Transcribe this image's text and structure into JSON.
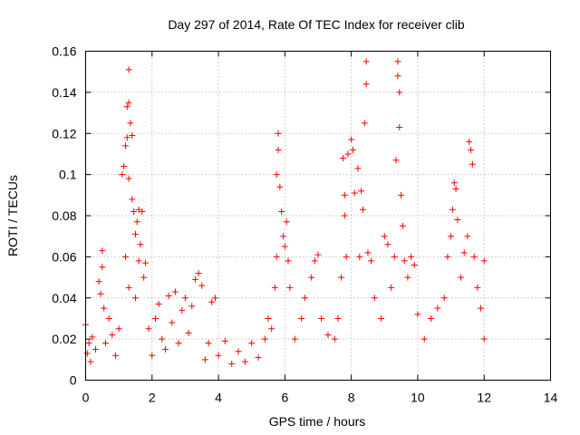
{
  "chart_data": {
    "type": "scatter",
    "title": "Day 297 of 2014, Rate Of TEC Index for receiver clib",
    "xlabel": "GPS time / hours",
    "ylabel": "ROTI / TECUs",
    "xlim": [
      0,
      14
    ],
    "ylim": [
      0,
      0.16
    ],
    "xticks": [
      0,
      2,
      4,
      6,
      8,
      10,
      12,
      14
    ],
    "xtick_labels": [
      "0",
      "2",
      "4",
      "6",
      "8",
      "10",
      "12",
      "14"
    ],
    "yticks": [
      0,
      0.02,
      0.04,
      0.06,
      0.08,
      0.1,
      0.12,
      0.14,
      0.16
    ],
    "ytick_labels": [
      "0",
      "0.02",
      "0.04",
      "0.06",
      "0.08",
      "0.1",
      "0.12",
      "0.14",
      "0.16"
    ],
    "grid": true,
    "marker": "+",
    "color": "#ff0000",
    "series": [
      {
        "name": "ROTI",
        "points": [
          [
            0.0,
            0.027
          ],
          [
            0.05,
            0.013
          ],
          [
            0.1,
            0.018
          ],
          [
            0.15,
            0.009
          ],
          [
            0.2,
            0.021
          ],
          [
            0.3,
            0.015
          ],
          [
            0.4,
            0.048
          ],
          [
            0.45,
            0.042
          ],
          [
            0.5,
            0.055
          ],
          [
            0.5,
            0.063
          ],
          [
            0.55,
            0.035
          ],
          [
            0.6,
            0.018
          ],
          [
            0.7,
            0.03
          ],
          [
            0.8,
            0.022
          ],
          [
            0.9,
            0.012
          ],
          [
            1.0,
            0.025
          ],
          [
            1.1,
            0.1
          ],
          [
            1.15,
            0.104
          ],
          [
            1.2,
            0.114
          ],
          [
            1.25,
            0.118
          ],
          [
            1.25,
            0.133
          ],
          [
            1.3,
            0.135
          ],
          [
            1.3,
            0.151
          ],
          [
            1.3,
            0.098
          ],
          [
            1.35,
            0.125
          ],
          [
            1.4,
            0.119
          ],
          [
            1.4,
            0.088
          ],
          [
            1.45,
            0.082
          ],
          [
            1.5,
            0.071
          ],
          [
            1.55,
            0.077
          ],
          [
            1.6,
            0.083
          ],
          [
            1.65,
            0.066
          ],
          [
            1.7,
            0.082
          ],
          [
            1.6,
            0.058
          ],
          [
            1.75,
            0.05
          ],
          [
            1.8,
            0.057
          ],
          [
            1.2,
            0.06
          ],
          [
            1.3,
            0.045
          ],
          [
            1.5,
            0.04
          ],
          [
            1.9,
            0.025
          ],
          [
            2.0,
            0.012
          ],
          [
            2.1,
            0.03
          ],
          [
            2.2,
            0.037
          ],
          [
            2.3,
            0.02
          ],
          [
            2.4,
            0.015
          ],
          [
            2.5,
            0.041
          ],
          [
            2.6,
            0.028
          ],
          [
            2.7,
            0.043
          ],
          [
            2.8,
            0.018
          ],
          [
            2.9,
            0.034
          ],
          [
            3.0,
            0.04
          ],
          [
            3.1,
            0.023
          ],
          [
            3.2,
            0.036
          ],
          [
            3.3,
            0.049
          ],
          [
            3.4,
            0.052
          ],
          [
            3.5,
            0.046
          ],
          [
            3.6,
            0.01
          ],
          [
            3.7,
            0.018
          ],
          [
            3.8,
            0.038
          ],
          [
            3.9,
            0.04
          ],
          [
            4.0,
            0.012
          ],
          [
            4.2,
            0.019
          ],
          [
            4.4,
            0.008
          ],
          [
            4.6,
            0.014
          ],
          [
            4.8,
            0.009
          ],
          [
            5.0,
            0.018
          ],
          [
            5.2,
            0.011
          ],
          [
            5.4,
            0.02
          ],
          [
            5.6,
            0.025
          ],
          [
            5.5,
            0.03
          ],
          [
            5.7,
            0.045
          ],
          [
            5.75,
            0.06
          ],
          [
            5.75,
            0.1
          ],
          [
            5.8,
            0.112
          ],
          [
            5.8,
            0.12
          ],
          [
            5.85,
            0.094
          ],
          [
            5.9,
            0.082
          ],
          [
            5.95,
            0.07
          ],
          [
            6.0,
            0.065
          ],
          [
            6.05,
            0.077
          ],
          [
            6.1,
            0.058
          ],
          [
            6.15,
            0.045
          ],
          [
            6.3,
            0.02
          ],
          [
            6.5,
            0.03
          ],
          [
            6.6,
            0.04
          ],
          [
            6.8,
            0.05
          ],
          [
            6.9,
            0.058
          ],
          [
            7.0,
            0.061
          ],
          [
            7.1,
            0.03
          ],
          [
            7.3,
            0.022
          ],
          [
            7.5,
            0.02
          ],
          [
            7.6,
            0.03
          ],
          [
            7.7,
            0.05
          ],
          [
            7.8,
            0.08
          ],
          [
            7.75,
            0.108
          ],
          [
            7.8,
            0.09
          ],
          [
            7.85,
            0.06
          ],
          [
            7.9,
            0.11
          ],
          [
            8.0,
            0.117
          ],
          [
            8.05,
            0.112
          ],
          [
            8.1,
            0.091
          ],
          [
            8.2,
            0.103
          ],
          [
            8.25,
            0.06
          ],
          [
            8.3,
            0.092
          ],
          [
            8.35,
            0.083
          ],
          [
            8.4,
            0.125
          ],
          [
            8.45,
            0.144
          ],
          [
            8.45,
            0.155
          ],
          [
            8.5,
            0.062
          ],
          [
            8.6,
            0.058
          ],
          [
            8.7,
            0.04
          ],
          [
            8.9,
            0.03
          ],
          [
            9.0,
            0.07
          ],
          [
            9.1,
            0.066
          ],
          [
            9.2,
            0.045
          ],
          [
            9.3,
            0.06
          ],
          [
            9.35,
            0.107
          ],
          [
            9.4,
            0.148
          ],
          [
            9.4,
            0.155
          ],
          [
            9.45,
            0.14
          ],
          [
            9.45,
            0.123
          ],
          [
            9.5,
            0.09
          ],
          [
            9.55,
            0.075
          ],
          [
            9.6,
            0.058
          ],
          [
            9.7,
            0.05
          ],
          [
            9.8,
            0.06
          ],
          [
            9.9,
            0.056
          ],
          [
            10.0,
            0.032
          ],
          [
            10.2,
            0.02
          ],
          [
            10.4,
            0.03
          ],
          [
            10.6,
            0.035
          ],
          [
            10.8,
            0.04
          ],
          [
            10.9,
            0.06
          ],
          [
            11.0,
            0.07
          ],
          [
            11.05,
            0.083
          ],
          [
            11.1,
            0.096
          ],
          [
            11.15,
            0.093
          ],
          [
            11.2,
            0.078
          ],
          [
            11.3,
            0.05
          ],
          [
            11.4,
            0.062
          ],
          [
            11.5,
            0.07
          ],
          [
            11.55,
            0.116
          ],
          [
            11.6,
            0.112
          ],
          [
            11.65,
            0.105
          ],
          [
            11.7,
            0.06
          ],
          [
            11.8,
            0.045
          ],
          [
            11.9,
            0.035
          ],
          [
            12.0,
            0.058
          ],
          [
            12.0,
            0.02
          ]
        ]
      }
    ]
  }
}
